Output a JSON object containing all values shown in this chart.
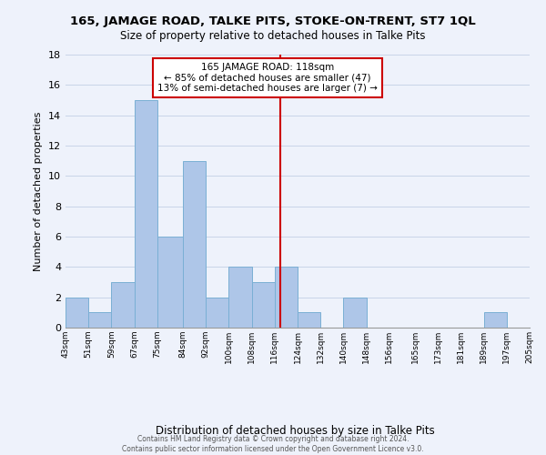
{
  "title": "165, JAMAGE ROAD, TALKE PITS, STOKE-ON-TRENT, ST7 1QL",
  "subtitle": "Size of property relative to detached houses in Talke Pits",
  "xlabel": "Distribution of detached houses by size in Talke Pits",
  "ylabel": "Number of detached properties",
  "bin_edges": [
    43,
    51,
    59,
    67,
    75,
    84,
    92,
    100,
    108,
    116,
    124,
    132,
    140,
    148,
    156,
    165,
    173,
    181,
    189,
    197,
    205
  ],
  "bar_heights": [
    2,
    1,
    3,
    15,
    6,
    11,
    2,
    4,
    3,
    4,
    1,
    0,
    2,
    0,
    0,
    0,
    0,
    0,
    1,
    0
  ],
  "bar_color": "#aec6e8",
  "bar_edge_color": "#7aafd4",
  "vline_x": 118,
  "vline_color": "#cc0000",
  "annotation_text": "165 JAMAGE ROAD: 118sqm\n← 85% of detached houses are smaller (47)\n13% of semi-detached houses are larger (7) →",
  "annotation_box_color": "#ffffff",
  "annotation_box_edge_color": "#cc0000",
  "ylim": [
    0,
    18
  ],
  "yticks": [
    0,
    2,
    4,
    6,
    8,
    10,
    12,
    14,
    16,
    18
  ],
  "tick_labels": [
    "43sqm",
    "51sqm",
    "59sqm",
    "67sqm",
    "75sqm",
    "84sqm",
    "92sqm",
    "100sqm",
    "108sqm",
    "116sqm",
    "124sqm",
    "132sqm",
    "140sqm",
    "148sqm",
    "156sqm",
    "165sqm",
    "173sqm",
    "181sqm",
    "189sqm",
    "197sqm",
    "205sqm"
  ],
  "footer_text": "Contains HM Land Registry data © Crown copyright and database right 2024.\nContains public sector information licensed under the Open Government Licence v3.0.",
  "background_color": "#eef2fb",
  "plot_bg_color": "#eef2fb",
  "grid_color": "#c8d4e8"
}
